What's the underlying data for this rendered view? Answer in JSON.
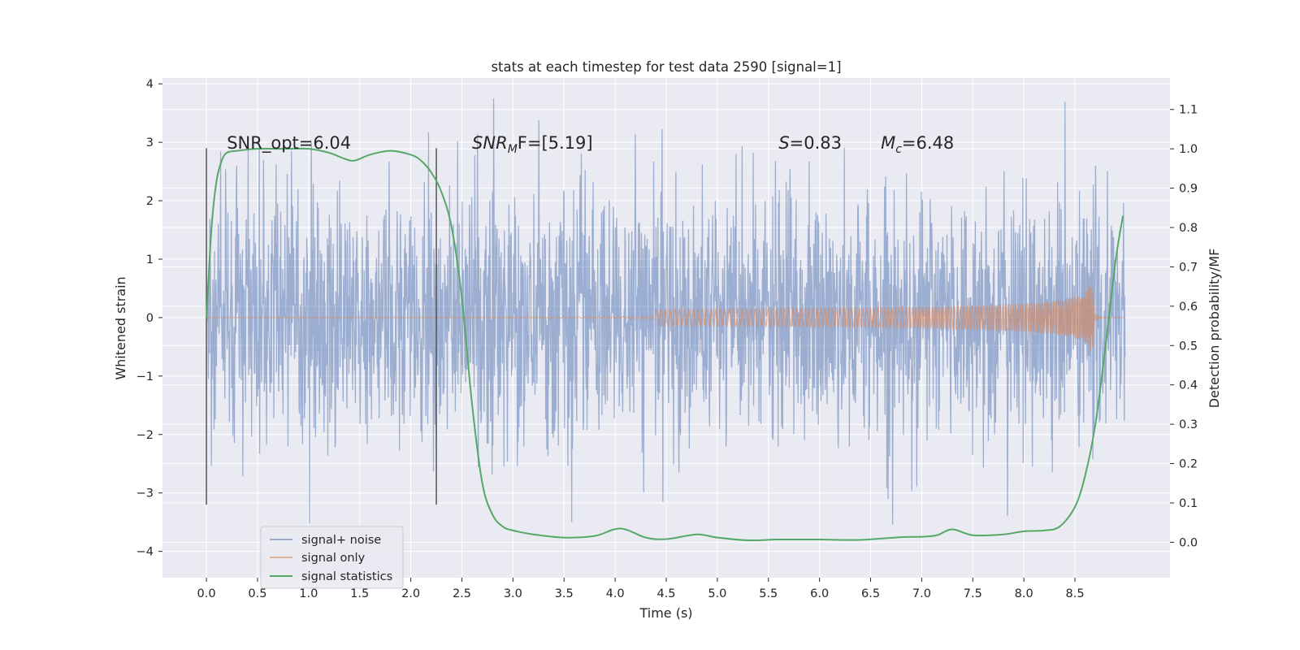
{
  "chart_data": {
    "type": "line",
    "title": "stats at each timestep for test data 2590 [signal=1]",
    "xlabel": "Time (s)",
    "ylabel": "Whitened strain",
    "y2label": "Detection probability/MF",
    "xlim": [
      -0.43,
      9.43
    ],
    "ylim": [
      -4.45,
      4.1
    ],
    "y2lim": [
      -0.09,
      1.18
    ],
    "xticks": [
      0.0,
      0.5,
      1.0,
      1.5,
      2.0,
      2.5,
      3.0,
      3.5,
      4.0,
      4.5,
      5.0,
      5.5,
      6.0,
      6.5,
      7.0,
      7.5,
      8.0,
      8.5
    ],
    "xtick_labels": [
      "0.0",
      "0.5",
      "1.0",
      "1.5",
      "2.0",
      "2.5",
      "3.0",
      "3.5",
      "4.0",
      "4.5",
      "5.0",
      "5.5",
      "6.0",
      "6.5",
      "7.0",
      "7.5",
      "8.0",
      "8.5"
    ],
    "yticks": [
      -4,
      -3,
      -2,
      -1,
      0,
      1,
      2,
      3,
      4
    ],
    "ytick_labels": [
      "−4",
      "−3",
      "−2",
      "−1",
      "0",
      "1",
      "2",
      "3",
      "4"
    ],
    "y2ticks": [
      0.0,
      0.1,
      0.2,
      0.3,
      0.4,
      0.5,
      0.6,
      0.7,
      0.8,
      0.9,
      1.0,
      1.1
    ],
    "y2tick_labels": [
      "0.0",
      "0.1",
      "0.2",
      "0.3",
      "0.4",
      "0.5",
      "0.6",
      "0.7",
      "0.8",
      "0.9",
      "1.0",
      "1.1"
    ],
    "grid": true,
    "legend_position": "bottom-left",
    "series": [
      {
        "name": "signal+ noise",
        "color": "#4c72b0",
        "opacity": 0.5,
        "kind": "noise",
        "t_start": 0.0,
        "t_end": 8.99,
        "sigma": 1.05,
        "peak_max": 3.75,
        "peak_min": -4.0
      },
      {
        "name": "signal only",
        "color": "#dd8452",
        "opacity": 0.55,
        "kind": "chirp",
        "t_start": 0.0,
        "t_merge": 8.67,
        "t_end": 8.99,
        "peak_amplitude": 0.7
      },
      {
        "name": "signal statistics",
        "color": "#55a868",
        "axis": "right",
        "x": [
          0.0,
          0.05,
          0.1,
          0.15,
          0.2,
          0.3,
          0.5,
          0.8,
          1.0,
          1.2,
          1.35,
          1.45,
          1.6,
          1.8,
          2.0,
          2.1,
          2.2,
          2.3,
          2.4,
          2.5,
          2.6,
          2.7,
          2.8,
          2.9,
          3.0,
          3.2,
          3.5,
          3.8,
          4.05,
          4.3,
          4.5,
          4.8,
          5.0,
          5.3,
          5.6,
          6.0,
          6.4,
          6.8,
          7.0,
          7.15,
          7.3,
          7.5,
          7.8,
          8.0,
          8.2,
          8.35,
          8.5,
          8.6,
          8.7,
          8.8,
          8.9,
          8.97
        ],
        "values": [
          0.57,
          0.8,
          0.92,
          0.97,
          0.99,
          0.995,
          1.0,
          1.0,
          1.0,
          0.99,
          0.975,
          0.97,
          0.985,
          0.995,
          0.985,
          0.97,
          0.94,
          0.89,
          0.8,
          0.62,
          0.35,
          0.15,
          0.07,
          0.04,
          0.03,
          0.02,
          0.012,
          0.016,
          0.035,
          0.012,
          0.008,
          0.02,
          0.012,
          0.005,
          0.007,
          0.007,
          0.006,
          0.013,
          0.014,
          0.018,
          0.033,
          0.018,
          0.02,
          0.028,
          0.03,
          0.04,
          0.09,
          0.17,
          0.3,
          0.5,
          0.72,
          0.83
        ]
      }
    ],
    "vlines": [
      {
        "x": 0.0,
        "ymin": -3.2,
        "ymax": 2.9,
        "color": "#555555"
      },
      {
        "x": 2.25,
        "ymin": -3.2,
        "ymax": 2.9,
        "color": "#555555"
      }
    ],
    "annotations": [
      {
        "text": "SNR_opt=6.04",
        "x": 0.2,
        "y": 3.0,
        "italic": false
      },
      {
        "text": "SNRMF=[5.19]",
        "x": 2.6,
        "y": 3.0,
        "italic": true,
        "prefix": "SNR",
        "sub": "M",
        "suffix": "F=[5.19]"
      },
      {
        "text": "S=0.83",
        "x": 5.6,
        "y": 3.0,
        "italic": true,
        "prefix": "S",
        "sub": "",
        "suffix": "=0.83"
      },
      {
        "text": "Mc=6.48",
        "x": 6.6,
        "y": 3.0,
        "italic": true,
        "prefix": "M",
        "sub": "c",
        "suffix": "=6.48"
      }
    ],
    "legend_labels": [
      "signal+ noise",
      "signal only",
      "signal statistics"
    ],
    "background_color": "#eaeaf2",
    "grid_color": "#ffffff"
  }
}
